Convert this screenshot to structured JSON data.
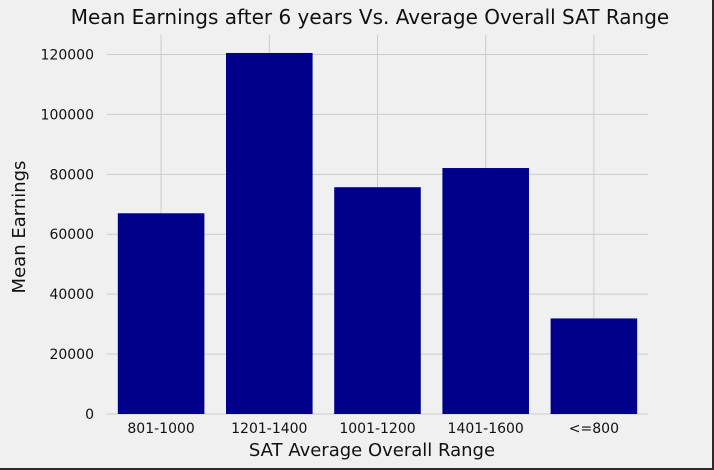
{
  "chart_data": {
    "type": "bar",
    "title": "Mean Earnings after 6 years Vs. Average Overall SAT Range",
    "xlabel": "SAT Average Overall Range",
    "ylabel": "Mean Earnings",
    "categories": [
      "801-1000",
      "1201-1400",
      "1001-1200",
      "1401-1600",
      "<=800"
    ],
    "values": [
      67000,
      120500,
      75700,
      82100,
      31900
    ],
    "yticks": [
      0,
      20000,
      40000,
      60000,
      80000,
      100000,
      120000
    ],
    "ylim": [
      0,
      126500
    ],
    "grid": true,
    "bar_color": "#00008b"
  }
}
